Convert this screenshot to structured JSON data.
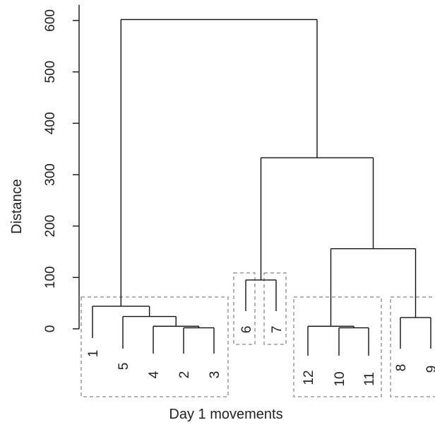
{
  "chart_data": {
    "type": "dendrogram",
    "xlabel": "Day 1 movements",
    "ylabel": "Distance",
    "ylim": [
      0,
      600
    ],
    "yticks": [
      0,
      100,
      200,
      300,
      400,
      500,
      600
    ],
    "grid": false,
    "leaf_order": [
      "1",
      "5",
      "4",
      "2",
      "3",
      "6",
      "7",
      "12",
      "10",
      "11",
      "8",
      "9"
    ],
    "merges": [
      {
        "id": "m2_3",
        "children": [
          "2",
          "3"
        ],
        "height": 2
      },
      {
        "id": "m4_23",
        "children": [
          "4",
          "m2_3"
        ],
        "height": 5
      },
      {
        "id": "m5_423",
        "children": [
          "5",
          "m4_23"
        ],
        "height": 24
      },
      {
        "id": "m1_rest",
        "children": [
          "1",
          "m5_423"
        ],
        "height": 44
      },
      {
        "id": "m6_7",
        "children": [
          "6",
          "7"
        ],
        "height": 95
      },
      {
        "id": "m10_11",
        "children": [
          "10",
          "11"
        ],
        "height": 2
      },
      {
        "id": "m12_1011",
        "children": [
          "12",
          "m10_11"
        ],
        "height": 5
      },
      {
        "id": "m8_9",
        "children": [
          "8",
          "9"
        ],
        "height": 22
      },
      {
        "id": "mA",
        "children": [
          "m12_1011",
          "m8_9"
        ],
        "height": 156
      },
      {
        "id": "mB",
        "children": [
          "m6_7",
          "mA"
        ],
        "height": 333
      },
      {
        "id": "root",
        "children": [
          "m1_rest",
          "mB"
        ],
        "height": 602
      }
    ],
    "cluster_boxes": [
      [
        "1",
        "5",
        "4",
        "2",
        "3"
      ],
      [
        "6"
      ],
      [
        "7"
      ],
      [
        "12",
        "10",
        "11"
      ],
      [
        "8",
        "9"
      ]
    ]
  },
  "colors": {
    "line": "#111111",
    "box": "#888888",
    "text": "#222222"
  }
}
